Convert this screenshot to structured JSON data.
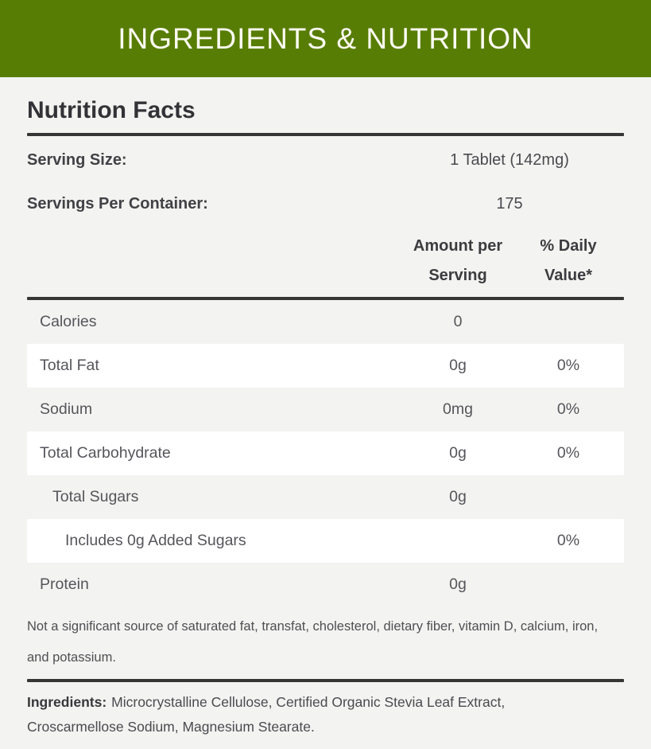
{
  "banner": {
    "title": "INGREDIENTS & NUTRITION"
  },
  "nutrition": {
    "title": "Nutrition Facts",
    "serving_size": {
      "label": "Serving Size:",
      "value": "1 Tablet (142mg)"
    },
    "servings_per_container": {
      "label": "Servings Per Container:",
      "value": "175"
    },
    "columns": {
      "amount": "Amount per Serving",
      "daily_value": "% Daily Value*"
    },
    "rows": [
      {
        "label": "Calories",
        "amount": "0",
        "daily_value": "",
        "indent": 0
      },
      {
        "label": "Total Fat",
        "amount": "0g",
        "daily_value": "0%",
        "indent": 0
      },
      {
        "label": "Sodium",
        "amount": "0mg",
        "daily_value": "0%",
        "indent": 0
      },
      {
        "label": "Total Carbohydrate",
        "amount": "0g",
        "daily_value": "0%",
        "indent": 0
      },
      {
        "label": "Total Sugars",
        "amount": "0g",
        "daily_value": "",
        "indent": 1
      },
      {
        "label": "Includes 0g Added Sugars",
        "amount": "",
        "daily_value": "0%",
        "indent": 2
      },
      {
        "label": "Protein",
        "amount": "0g",
        "daily_value": "",
        "indent": 0
      }
    ],
    "footnote": "Not a significant source of saturated fat, transfat, cholesterol, dietary fiber, vitamin D, calcium, iron, and potassium."
  },
  "ingredients": {
    "label": "Ingredients:",
    "text": "Microcrystalline Cellulose, Certified Organic Stevia Leaf Extract, Croscarmellose Sodium, Magnesium Stearate."
  },
  "colors": {
    "accent_green": "#587d05",
    "page_background": "#f3f3f1",
    "row_highlight": "#ffffff",
    "rule": "#363636",
    "banner_text": "#fbfbf2"
  }
}
